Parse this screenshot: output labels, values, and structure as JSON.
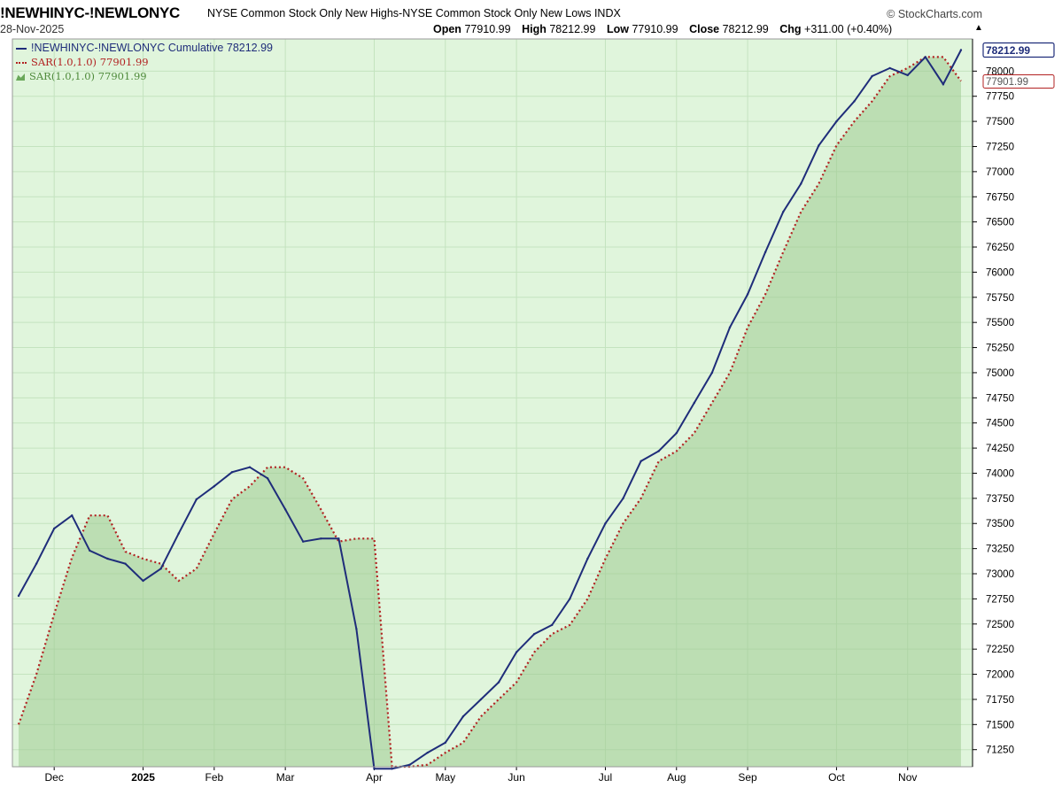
{
  "header": {
    "symbol": "!NEWHINYC-!NEWLONYC",
    "description": "NYSE Common Stock Only New Highs-NYSE Common Stock Only New Lows INDX",
    "brand": "© StockCharts.com",
    "date": "28-Nov-2025",
    "open_label": "Open",
    "open": "77910.99",
    "high_label": "High",
    "high": "78212.99",
    "low_label": "Low",
    "low": "77910.99",
    "close_label": "Close",
    "close": "78212.99",
    "chg_label": "Chg",
    "chg": "+311.00 (+0.40%)",
    "caret": "▲"
  },
  "legend": {
    "main": "!NEWHINYC-!NEWLONYC Cumulative 78212.99",
    "sar_line": "SAR(1.0,1.0) 77901.99",
    "sar_area": "SAR(1.0,1.0) 77901.99"
  },
  "colors": {
    "plot_bg": "#e0f5dc",
    "grid": "#c4e3bf",
    "main_line": "#1f2d7a",
    "sar_line": "#b22222",
    "sar_fill": "#9ecb91"
  },
  "chart_data": {
    "type": "line",
    "title": "!NEWHINYC-!NEWLONYC",
    "subtitle": "NYSE Common Stock Only New Highs-NYSE Common Stock Only New Lows INDX",
    "xlabel": "",
    "ylabel": "",
    "ylim": [
      71080,
      78320
    ],
    "grid": true,
    "legend_position": "top-left",
    "y_ticks": [
      71250,
      71500,
      71750,
      72000,
      72250,
      72500,
      72750,
      73000,
      73250,
      73500,
      73750,
      74000,
      74250,
      74500,
      74750,
      75000,
      75250,
      75500,
      75750,
      76000,
      76250,
      76500,
      76750,
      77000,
      77250,
      77500,
      77750,
      78000
    ],
    "x_tick_labels": [
      {
        "label": "Dec",
        "week": 2
      },
      {
        "label": "2025",
        "week": 7
      },
      {
        "label": "Feb",
        "week": 11
      },
      {
        "label": "Mar",
        "week": 15
      },
      {
        "label": "Apr",
        "week": 20
      },
      {
        "label": "May",
        "week": 24
      },
      {
        "label": "Jun",
        "week": 28
      },
      {
        "label": "Jul",
        "week": 33
      },
      {
        "label": "Aug",
        "week": 37
      },
      {
        "label": "Sep",
        "week": 41
      },
      {
        "label": "Oct",
        "week": 46
      },
      {
        "label": "Nov",
        "week": 50
      }
    ],
    "x_week_count": 54,
    "series": [
      {
        "name": "!NEWHINYC-!NEWLONYC Cumulative",
        "style": "line",
        "last_value": "78212.99",
        "values": [
          72780,
          73100,
          73450,
          73580,
          73230,
          73150,
          73100,
          72930,
          73050,
          73400,
          73740,
          73870,
          74010,
          74060,
          73950,
          73640,
          73320,
          73350,
          73350,
          72450,
          71060,
          71060,
          71100,
          71220,
          71320,
          71580,
          71750,
          71920,
          72220,
          72400,
          72490,
          72750,
          73150,
          73500,
          73750,
          74120,
          74220,
          74400,
          74700,
          75000,
          75450,
          75780,
          76200,
          76600,
          76880,
          77260,
          77500,
          77700,
          77950,
          78030,
          77960,
          78140,
          77870,
          78210
        ]
      },
      {
        "name": "SAR(1.0,1.0)",
        "style": "dotted",
        "last_value": "77901.99",
        "values": [
          71500,
          72000,
          72600,
          73160,
          73580,
          73580,
          73220,
          73150,
          73100,
          72930,
          73050,
          73400,
          73740,
          73870,
          74060,
          74060,
          73950,
          73640,
          73320,
          73350,
          73350,
          71080,
          71080,
          71100,
          71220,
          71320,
          71580,
          71750,
          71920,
          72220,
          72400,
          72490,
          72750,
          73150,
          73500,
          73750,
          74120,
          74220,
          74400,
          74700,
          75000,
          75450,
          75780,
          76200,
          76600,
          76880,
          77260,
          77500,
          77700,
          77950,
          78030,
          78140,
          78140,
          77902
        ]
      }
    ]
  }
}
